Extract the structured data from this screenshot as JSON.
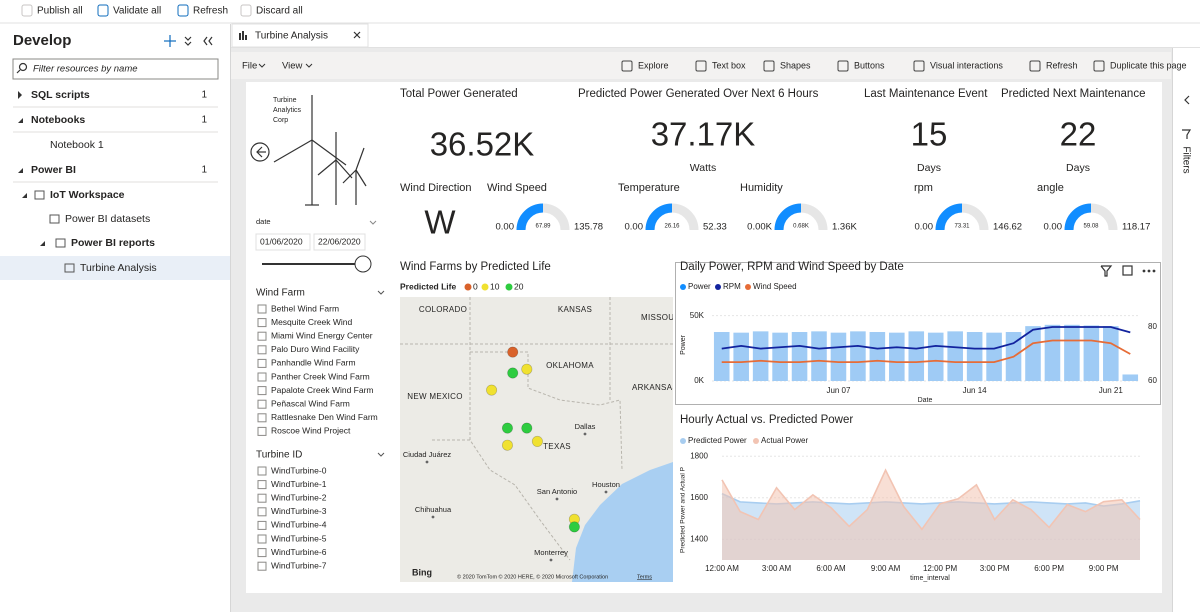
{
  "toolbar": {
    "items": [
      "Publish all",
      "Validate all",
      "Refresh",
      "Discard all"
    ]
  },
  "sidebar": {
    "title": "Develop",
    "search_placeholder": "Filter resources by name",
    "tree": [
      {
        "label": "SQL scripts",
        "count": 1
      },
      {
        "label": "Notebooks",
        "count": 1
      },
      {
        "label": "Notebook 1"
      },
      {
        "label": "Power BI",
        "count": 1
      },
      {
        "label": "IoT Workspace"
      },
      {
        "label": "Power BI datasets"
      },
      {
        "label": "Power BI reports"
      },
      {
        "label": "Turbine Analysis"
      }
    ]
  },
  "tab": {
    "title": "Turbine Analysis"
  },
  "report_toolbar": {
    "menus": [
      "File",
      "View"
    ],
    "actions": [
      "Explore",
      "Text box",
      "Shapes",
      "Buttons",
      "Visual interactions",
      "Refresh",
      "Duplicate this page"
    ]
  },
  "filters_pane": {
    "label": "Filters"
  },
  "report": {
    "logo": [
      "Turbine",
      "Analytics",
      "Corp"
    ],
    "date_slicer": {
      "label": "date",
      "start": "01/06/2020",
      "end": "22/06/2020"
    },
    "wind_farm_slicer": {
      "title": "Wind Farm",
      "items": [
        "Bethel Wind Farm",
        "Mesquite Creek Wind",
        "Miami Wind Energy Center",
        "Palo Duro Wind Facility",
        "Panhandle Wind Farm",
        "Panther Creek Wind Farm",
        "Papalote Creek Wind Farm",
        "Peñascal Wind Farm",
        "Rattlesnake Den Wind Farm",
        "Roscoe Wind Project"
      ]
    },
    "turbine_slicer": {
      "title": "Turbine ID",
      "items": [
        "WindTurbine-0",
        "WindTurbine-1",
        "WindTurbine-2",
        "WindTurbine-3",
        "WindTurbine-4",
        "WindTurbine-5",
        "WindTurbine-6",
        "WindTurbine-7"
      ]
    },
    "cards": [
      {
        "title": "Total Power Generated",
        "value": "36.52K"
      },
      {
        "title": "Predicted Power Generated Over Next 6 Hours",
        "value": "37.17K",
        "unit": "Watts"
      },
      {
        "title": "Last Maintenance Event",
        "value": 15,
        "unit": "Days"
      },
      {
        "title": "Predicted Next Maintenance",
        "value": 22,
        "unit": "Days"
      }
    ],
    "wind_direction": {
      "title": "Wind Direction",
      "value": "W"
    },
    "gauges": [
      {
        "title": "Wind Speed",
        "min": {
          "value": 0,
          "label": "0.00"
        },
        "value": 67.89,
        "max": 135.78
      },
      {
        "title": "Temperature",
        "min": {
          "value": 0,
          "label": "0.00"
        },
        "value": 26.16,
        "max": 52.33
      },
      {
        "title": "Humidity",
        "min": {
          "value": 0,
          "label": "0.00K"
        },
        "value": {
          "value": 680,
          "label": "0.68K"
        },
        "max": {
          "value": 1360,
          "label": "1.36K"
        }
      },
      {
        "title": "rpm",
        "min": {
          "value": 0,
          "label": "0.00"
        },
        "value": 73.31,
        "max": 146.62
      },
      {
        "title": "angle",
        "min": {
          "value": 0,
          "label": "0.00"
        },
        "value": 59.08,
        "max": 118.17
      }
    ],
    "gauge_color": "#118dff"
  },
  "chart_data": [
    {
      "type": "map",
      "title": "Wind Farms by Predicted Life",
      "legend_title": "Predicted Life",
      "legend": [
        {
          "value": 0,
          "color": "#d9622b"
        },
        {
          "value": 10,
          "color": "#f0e130"
        },
        {
          "value": 20,
          "color": "#2ecc40"
        }
      ],
      "x": [
        -100.9,
        -100.9,
        -100.1,
        -102.1,
        -101.2,
        -100.1,
        -101.2,
        -99.5,
        -97.4,
        -97.4
      ],
      "y": [
        36.7,
        35.6,
        35.8,
        34.7,
        32.7,
        32.7,
        31.8,
        32.0,
        27.9,
        27.5
      ],
      "values": [
        0,
        20,
        10,
        10,
        20,
        20,
        10,
        10,
        10,
        20
      ],
      "xlim": [
        -107.3,
        -91.8
      ],
      "ylim": [
        24.6,
        39.6
      ],
      "place_labels": [
        "COLORADO",
        "KANSAS",
        "MISSOURI",
        "OKLAHOMA",
        "ARKANSAS",
        "NEW MEXICO",
        "TEXAS",
        "Dallas",
        "Ciudad Juárez",
        "San Antonio",
        "Houston",
        "Chihuahua",
        "Monterrey"
      ],
      "brand": "Bing",
      "attribution": "© 2020 TomTom © 2020 HERE, © 2020 Microsoft Corporation",
      "terms": "Terms"
    },
    {
      "type": "combo",
      "title": "Daily Power, RPM and Wind Speed by Date",
      "categories": [
        null,
        null,
        null,
        null,
        null,
        null,
        "Jun 07",
        null,
        null,
        null,
        null,
        null,
        null,
        "Jun 14",
        null,
        null,
        null,
        null,
        null,
        null,
        "Jun 21",
        null
      ],
      "series": [
        {
          "name": "Power",
          "kind": "bar",
          "color": "#9fcbf5",
          "values": [
            37500,
            37000,
            38000,
            37000,
            37500,
            38000,
            37000,
            38000,
            37500,
            37000,
            38000,
            37000,
            38000,
            37500,
            37000,
            37500,
            42000,
            43000,
            43000,
            42500,
            42000,
            5000
          ]
        },
        {
          "name": "RPM",
          "kind": "line",
          "axis": "y2",
          "color": "#12239e",
          "values": [
            72,
            73,
            72,
            72.5,
            73,
            72,
            72.5,
            73,
            72,
            72.5,
            72,
            73,
            72.5,
            72,
            72,
            74,
            79,
            80,
            80,
            80,
            80,
            78
          ]
        },
        {
          "name": "Wind Speed",
          "kind": "line",
          "axis": "y2",
          "color": "#e66c37",
          "values": [
            67,
            67,
            67.5,
            67,
            67,
            67.5,
            67,
            67,
            67.5,
            67,
            67,
            67.5,
            67,
            67,
            67,
            69,
            74,
            75,
            75,
            75,
            74,
            70
          ]
        }
      ],
      "ylim": [
        0,
        62000
      ],
      "yticks": [
        {
          "value": 0,
          "label": "0K"
        },
        {
          "value": 50000,
          "label": "50K"
        }
      ],
      "y2lim": [
        60,
        90
      ],
      "y2ticks": [
        60,
        80
      ],
      "ylabel": "Power",
      "xlabel": "Date",
      "grid": true
    },
    {
      "type": "area",
      "title": "Hourly Actual vs. Predicted Power",
      "categories": [
        "12:00 AM",
        null,
        null,
        "3:00 AM",
        null,
        null,
        "6:00 AM",
        null,
        null,
        "9:00 AM",
        null,
        null,
        "12:00 PM",
        null,
        null,
        "3:00 PM",
        null,
        null,
        "6:00 PM",
        null,
        null,
        "9:00 PM",
        null,
        null
      ],
      "series": [
        {
          "name": "Predicted Power",
          "color": "#a8cdf0",
          "values": [
            1620,
            1580,
            1575,
            1570,
            1575,
            1580,
            1575,
            1570,
            1575,
            1580,
            1575,
            1570,
            1575,
            1580,
            1575,
            1570,
            1575,
            1580,
            1575,
            1570,
            1575,
            1560,
            1570,
            1585
          ]
        },
        {
          "name": "Actual Power",
          "color": "#f2c4b3",
          "values": [
            1686,
            1533,
            1495,
            1648,
            1543,
            1614,
            1552,
            1462,
            1543,
            1733,
            1557,
            1448,
            1571,
            1595,
            1662,
            1495,
            1590,
            1543,
            1457,
            1567,
            1533,
            1581,
            1590,
            1495
          ]
        }
      ],
      "ylim": [
        1300,
        1830
      ],
      "yticks": [
        1400,
        1600,
        1800
      ],
      "ylabel": "Predicted Power and Actual P",
      "xlabel": "time_interval",
      "grid": true
    }
  ]
}
